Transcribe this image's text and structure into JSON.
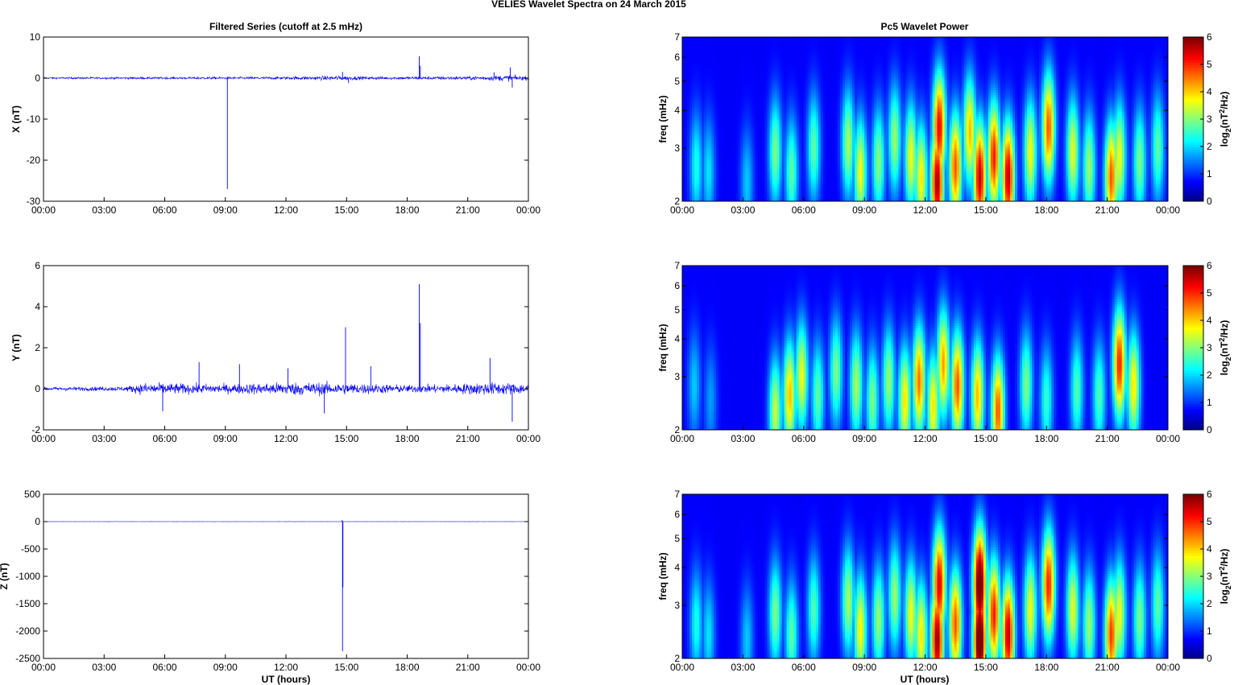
{
  "figure": {
    "title": "VELIES Wavelet Spectra on 24 March     2015",
    "left_title": "Filtered Series (cutoff at 2.5 mHz)",
    "right_title": "Pc5 Wavelet Power",
    "xlabel": "UT (hours)"
  },
  "chart_data": [
    {
      "type": "line",
      "id": "x-series",
      "ylabel": "X (nT)",
      "ylim": [
        -30,
        10
      ],
      "yticks": [
        10,
        0,
        -10,
        -20,
        -30
      ],
      "xlim": [
        0,
        24
      ],
      "xticks": [
        "00:00",
        "03:00",
        "06:00",
        "09:00",
        "12:00",
        "15:00",
        "18:00",
        "21:00",
        "00:00"
      ],
      "grid": false,
      "color": "#0000ff",
      "noise": [
        [
          0,
          0.3
        ],
        [
          5,
          0.35
        ],
        [
          9,
          0.4
        ],
        [
          12,
          0.5
        ],
        [
          14.5,
          0.8
        ],
        [
          16,
          0.5
        ],
        [
          21,
          0.6
        ],
        [
          23,
          1.0
        ],
        [
          24,
          0.6
        ]
      ],
      "spikes": [
        [
          9.1,
          -27
        ],
        [
          18.6,
          5.3
        ],
        [
          18.65,
          3
        ],
        [
          14.8,
          1.5
        ],
        [
          22.3,
          1.4
        ],
        [
          23.1,
          2.6
        ],
        [
          23.2,
          -2.3
        ],
        [
          15.1,
          -1.2
        ]
      ]
    },
    {
      "type": "line",
      "id": "y-series",
      "ylabel": "Y (nT)",
      "ylim": [
        -2,
        6
      ],
      "yticks": [
        6,
        4,
        2,
        0,
        -2
      ],
      "xlim": [
        0,
        24
      ],
      "xticks": [
        "00:00",
        "03:00",
        "06:00",
        "09:00",
        "12:00",
        "15:00",
        "18:00",
        "21:00",
        "00:00"
      ],
      "grid": false,
      "color": "#0000ff",
      "noise": [
        [
          0,
          0.12
        ],
        [
          4,
          0.15
        ],
        [
          5,
          0.4
        ],
        [
          7,
          0.35
        ],
        [
          9,
          0.3
        ],
        [
          11,
          0.4
        ],
        [
          13,
          0.45
        ],
        [
          16,
          0.35
        ],
        [
          18,
          0.25
        ],
        [
          20,
          0.3
        ],
        [
          22,
          0.45
        ],
        [
          24,
          0.35
        ]
      ],
      "spikes": [
        [
          18.6,
          5.1
        ],
        [
          18.65,
          3.2
        ],
        [
          14.95,
          3.0
        ],
        [
          7.7,
          1.3
        ],
        [
          9.7,
          1.2
        ],
        [
          22.1,
          1.5
        ],
        [
          23.2,
          -1.6
        ],
        [
          5.9,
          -1.1
        ],
        [
          13.9,
          -1.2
        ],
        [
          12.1,
          1.0
        ],
        [
          16.2,
          1.1
        ]
      ]
    },
    {
      "type": "line",
      "id": "z-series",
      "ylabel": "Z (nT)",
      "ylim": [
        -2500,
        500
      ],
      "yticks": [
        500,
        0,
        -500,
        -1000,
        -1500,
        -2000,
        -2500
      ],
      "xlim": [
        0,
        24
      ],
      "xticks": [
        "00:00",
        "03:00",
        "06:00",
        "09:00",
        "12:00",
        "15:00",
        "18:00",
        "21:00",
        "00:00"
      ],
      "grid": false,
      "color": "#0000ff",
      "noise": [
        [
          0,
          1
        ],
        [
          24,
          1
        ]
      ],
      "spikes": [
        [
          14.8,
          -2370
        ],
        [
          14.82,
          -1200
        ],
        [
          14.78,
          30
        ]
      ]
    },
    {
      "type": "heatmap",
      "id": "x-wavelet",
      "ylabel": "freq (mHz)",
      "yscale": "log",
      "ylim": [
        2,
        7
      ],
      "yticks": [
        2,
        3,
        4,
        5,
        6,
        7
      ],
      "xlim": [
        0,
        24
      ],
      "xticks": [
        "00:00",
        "03:00",
        "06:00",
        "09:00",
        "12:00",
        "15:00",
        "18:00",
        "21:00",
        "00:00"
      ],
      "colorbar": {
        "label": "log2(nT2/Hz)",
        "range": [
          0,
          6
        ],
        "ticks": [
          0,
          1,
          2,
          3,
          4,
          5,
          6
        ],
        "colormap": "jet"
      },
      "blobs": [
        [
          0.7,
          2.6,
          1.9
        ],
        [
          1.3,
          2.5,
          1.6
        ],
        [
          3.2,
          2.3,
          1.4
        ],
        [
          4.6,
          2.9,
          2.6
        ],
        [
          5.4,
          2.5,
          2.4
        ],
        [
          6.5,
          3.0,
          2.4
        ],
        [
          8.2,
          3.1,
          2.9
        ],
        [
          8.8,
          2.5,
          3.4
        ],
        [
          9.7,
          2.7,
          2.7
        ],
        [
          10.5,
          3.2,
          2.8
        ],
        [
          11.3,
          2.8,
          3.4
        ],
        [
          11.8,
          2.4,
          3.6
        ],
        [
          12.6,
          2.3,
          5.8
        ],
        [
          12.7,
          3.5,
          5.3
        ],
        [
          13.5,
          2.6,
          4.6
        ],
        [
          14.2,
          3.4,
          3.9
        ],
        [
          14.7,
          2.4,
          5.6
        ],
        [
          15.4,
          2.8,
          5.0
        ],
        [
          16.1,
          2.4,
          5.6
        ],
        [
          17.2,
          2.9,
          3.4
        ],
        [
          18.1,
          3.5,
          4.6
        ],
        [
          19.3,
          2.9,
          3.3
        ],
        [
          20.1,
          2.6,
          2.8
        ],
        [
          21.2,
          2.4,
          4.6
        ],
        [
          21.6,
          2.8,
          3.4
        ],
        [
          22.6,
          2.7,
          2.6
        ],
        [
          23.5,
          3.0,
          2.4
        ]
      ]
    },
    {
      "type": "heatmap",
      "id": "y-wavelet",
      "ylabel": "freq (mHz)",
      "yscale": "log",
      "ylim": [
        2,
        7
      ],
      "yticks": [
        2,
        3,
        4,
        5,
        6,
        7
      ],
      "xlim": [
        0,
        24
      ],
      "xticks": [
        "00:00",
        "03:00",
        "06:00",
        "09:00",
        "12:00",
        "15:00",
        "18:00",
        "21:00",
        "00:00"
      ],
      "colorbar": {
        "label": "log2(nT2/Hz)",
        "range": [
          0,
          6
        ],
        "ticks": [
          0,
          1,
          2,
          3,
          4,
          5,
          6
        ],
        "colormap": "jet"
      },
      "blobs": [
        [
          0.6,
          2.8,
          1.4
        ],
        [
          1.4,
          2.5,
          1.1
        ],
        [
          4.6,
          2.3,
          3.1
        ],
        [
          5.3,
          2.6,
          3.9
        ],
        [
          5.9,
          3.0,
          3.4
        ],
        [
          6.7,
          2.6,
          2.4
        ],
        [
          7.6,
          3.1,
          2.6
        ],
        [
          8.6,
          2.8,
          2.9
        ],
        [
          9.4,
          2.5,
          2.6
        ],
        [
          10.2,
          2.9,
          2.8
        ],
        [
          11.0,
          2.5,
          3.6
        ],
        [
          11.7,
          2.9,
          4.4
        ],
        [
          12.4,
          2.4,
          3.6
        ],
        [
          12.9,
          3.3,
          4.1
        ],
        [
          13.6,
          2.8,
          4.6
        ],
        [
          14.6,
          2.6,
          3.9
        ],
        [
          15.6,
          2.3,
          4.6
        ],
        [
          17.0,
          2.8,
          2.6
        ],
        [
          18.0,
          2.5,
          2.1
        ],
        [
          19.5,
          2.7,
          2.3
        ],
        [
          20.6,
          2.6,
          2.3
        ],
        [
          21.6,
          3.3,
          5.0
        ],
        [
          22.3,
          2.8,
          3.6
        ]
      ]
    },
    {
      "type": "heatmap",
      "id": "z-wavelet",
      "ylabel": "freq (mHz)",
      "yscale": "log",
      "ylim": [
        2,
        7
      ],
      "yticks": [
        2,
        3,
        4,
        5,
        6,
        7
      ],
      "xlim": [
        0,
        24
      ],
      "xticks": [
        "00:00",
        "03:00",
        "06:00",
        "09:00",
        "12:00",
        "15:00",
        "18:00",
        "21:00",
        "00:00"
      ],
      "colorbar": {
        "label": "log2(nT2/Hz)",
        "range": [
          0,
          6
        ],
        "ticks": [
          0,
          1,
          2,
          3,
          4,
          5,
          6
        ],
        "colormap": "jet"
      },
      "blobs": [
        [
          0.7,
          2.6,
          1.9
        ],
        [
          1.3,
          2.4,
          1.6
        ],
        [
          3.2,
          2.3,
          1.4
        ],
        [
          4.6,
          2.8,
          2.6
        ],
        [
          5.4,
          2.4,
          2.4
        ],
        [
          6.5,
          2.9,
          2.3
        ],
        [
          8.2,
          3.1,
          2.9
        ],
        [
          8.8,
          2.5,
          3.5
        ],
        [
          9.7,
          2.7,
          2.8
        ],
        [
          10.5,
          3.2,
          2.8
        ],
        [
          11.3,
          2.8,
          3.4
        ],
        [
          11.8,
          2.4,
          3.6
        ],
        [
          12.6,
          2.3,
          5.9
        ],
        [
          12.7,
          3.5,
          5.4
        ],
        [
          13.5,
          2.6,
          4.6
        ],
        [
          14.7,
          3.5,
          6.8
        ],
        [
          14.7,
          2.3,
          7.0
        ],
        [
          15.4,
          2.8,
          5.0
        ],
        [
          16.1,
          2.4,
          5.6
        ],
        [
          17.2,
          2.9,
          3.4
        ],
        [
          18.1,
          3.5,
          5.0
        ],
        [
          19.3,
          2.9,
          3.3
        ],
        [
          20.1,
          2.6,
          2.8
        ],
        [
          21.2,
          2.4,
          4.8
        ],
        [
          21.6,
          2.8,
          3.4
        ],
        [
          22.6,
          2.7,
          2.6
        ],
        [
          23.5,
          3.0,
          2.4
        ]
      ]
    }
  ]
}
